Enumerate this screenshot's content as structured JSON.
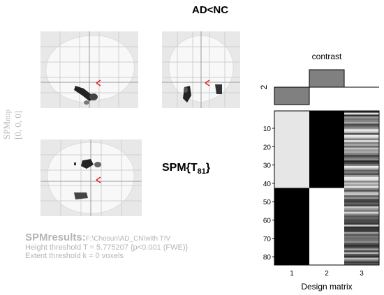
{
  "title": "AD<NC",
  "stat": {
    "prefix": "SPM{T",
    "df": "81",
    "suffix": "}"
  },
  "side_label": {
    "main": "SPM",
    "sub": "mip",
    "coords": "[0, 0, 0]"
  },
  "results": {
    "heading": "SPMresults:",
    "path": "F:\\Chosun\\AD_CN\\with TIV",
    "height_threshold": "Height threshold T = 5.775207  {p<0.001 (FWE)}",
    "extent_threshold": "Extent threshold k = 0 voxels"
  },
  "contrast": {
    "title": "contrast",
    "ylabel": "2",
    "weights": [
      -1,
      1,
      0
    ]
  },
  "design_matrix": {
    "xlabel": "Design matrix",
    "x_ticks": [
      "1",
      "2",
      "3"
    ],
    "y_ticks": [
      "10",
      "20",
      "30",
      "40",
      "50",
      "60",
      "70",
      "80"
    ],
    "n_rows": 84,
    "group_split_row": 42,
    "column_colors": [
      "#e6e6e6",
      "#000000",
      "#888888"
    ]
  },
  "colors": {
    "glass_bg": "#e8e8e8",
    "brain_silhouette": "#f8f8f8",
    "grid": "#cfcfcf",
    "cursor": "#e02020",
    "faded_text": "#b5b5b5",
    "bar_fill": "#808080"
  }
}
